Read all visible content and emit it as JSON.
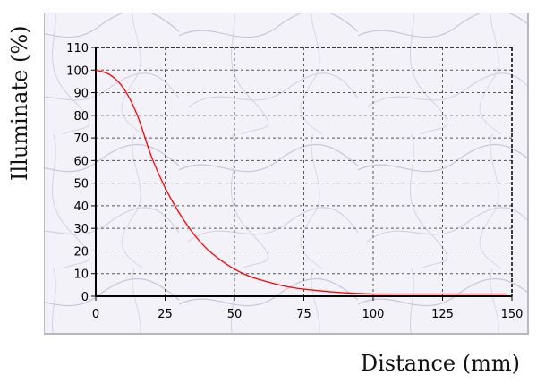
{
  "chart_data": {
    "type": "line",
    "xlabel": "Distance (mm)",
    "ylabel": "Illuminate (%)",
    "xlim": [
      0,
      150
    ],
    "ylim": [
      0,
      110
    ],
    "x_ticks": [
      0,
      25,
      50,
      75,
      100,
      125,
      150
    ],
    "y_ticks": [
      0,
      10,
      20,
      30,
      40,
      50,
      60,
      70,
      80,
      90,
      100,
      110
    ],
    "grid": true,
    "series": [
      {
        "color": "#ff0000",
        "x": [
          0,
          5,
          10,
          15,
          20,
          25,
          30,
          35,
          40,
          45,
          50,
          55,
          60,
          70,
          80,
          90,
          100,
          110,
          120,
          130,
          140,
          148
        ],
        "y": [
          100,
          98,
          92,
          80,
          62,
          48,
          37,
          28,
          21,
          16,
          12,
          9,
          7,
          4,
          2.5,
          1.5,
          1,
          1,
          1,
          1,
          1,
          1
        ]
      }
    ],
    "colors": {
      "plot_background": "#f1f0f7",
      "grid": "#555555",
      "axis": "#000000"
    }
  }
}
